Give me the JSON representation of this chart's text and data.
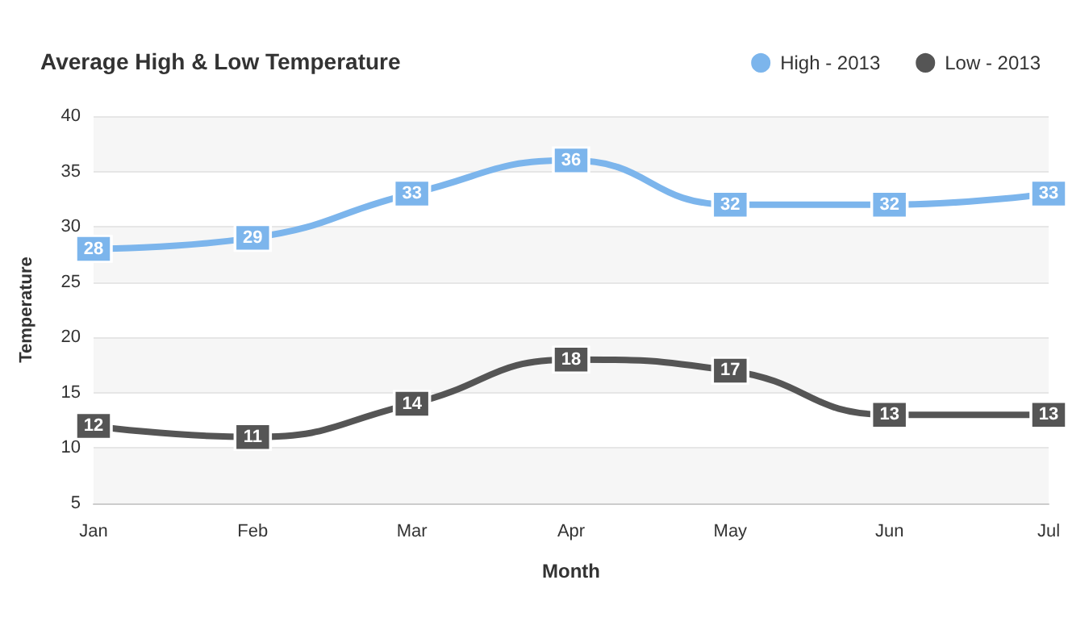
{
  "chart_data": {
    "type": "line",
    "title": "Average High & Low Temperature",
    "xlabel": "Month",
    "ylabel": "Temperature",
    "categories": [
      "Jan",
      "Feb",
      "Mar",
      "Apr",
      "May",
      "Jun",
      "Jul"
    ],
    "series": [
      {
        "name": "High - 2013",
        "color": "#7cb5ec",
        "values": [
          28,
          29,
          33,
          36,
          32,
          32,
          33
        ]
      },
      {
        "name": "Low - 2013",
        "color": "#555555",
        "values": [
          12,
          11,
          14,
          18,
          17,
          13,
          13
        ]
      }
    ],
    "ylim": [
      5,
      40
    ],
    "yticks": [
      5,
      10,
      15,
      20,
      25,
      30,
      35,
      40
    ],
    "grid": "y",
    "legend": "top right",
    "marker": "square",
    "data_labels": true,
    "line_style": "solid"
  }
}
